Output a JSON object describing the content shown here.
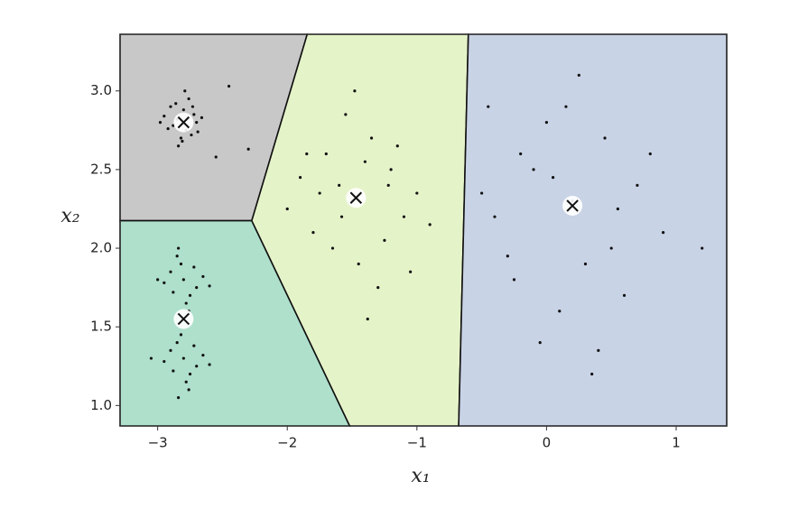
{
  "chart_data": {
    "type": "voronoi-scatter",
    "xlabel": "x₁",
    "ylabel": "x₂",
    "xlim": [
      -3.29,
      1.39
    ],
    "ylim": [
      0.87,
      3.36
    ],
    "xticks": [
      {
        "value": -3,
        "label": "−3"
      },
      {
        "value": -2,
        "label": "−2"
      },
      {
        "value": -1,
        "label": "−1"
      },
      0,
      1
    ],
    "yticks": [
      {
        "value": 1,
        "label": "1.0"
      },
      1.5,
      {
        "value": 2,
        "label": "2.0"
      },
      2.5,
      {
        "value": 3,
        "label": "3.0"
      }
    ],
    "point_color": "#111111",
    "centroids": {
      "x": [
        -2.8,
        -2.8,
        -1.47,
        0.2
      ],
      "y": [
        2.8,
        1.55,
        2.32,
        2.27
      ]
    },
    "region_colors": [
      "#c8c8c8",
      "#aee0cc",
      "#e5f3c9",
      "#c9d3e6"
    ],
    "clusters": [
      {
        "x": [
          -2.85,
          -2.78,
          -2.9,
          -2.72,
          -2.82,
          -2.76,
          -2.88,
          -2.7,
          -2.95,
          -2.8,
          -2.84,
          -2.74,
          -2.66,
          -2.92,
          -2.79,
          -2.86,
          -2.81,
          -2.73,
          -2.69,
          -2.98,
          -2.45,
          -2.3,
          -2.55
        ],
        "y": [
          2.82,
          2.75,
          2.9,
          2.85,
          2.7,
          2.95,
          2.78,
          2.8,
          2.84,
          2.88,
          2.65,
          2.72,
          2.83,
          2.76,
          3.0,
          2.92,
          2.68,
          2.9,
          2.74,
          2.8,
          3.03,
          2.63,
          2.58
        ]
      },
      {
        "x": [
          -2.8,
          -2.9,
          -2.7,
          -2.85,
          -2.75,
          -2.95,
          -2.65,
          -2.82,
          -2.78,
          -2.88,
          -2.72,
          -3.0,
          -2.6,
          -2.84,
          -2.76
        ],
        "y": [
          1.8,
          1.85,
          1.75,
          1.95,
          1.7,
          1.78,
          1.82,
          1.9,
          1.65,
          1.72,
          1.88,
          1.8,
          1.76,
          2.0,
          1.6
        ]
      },
      {
        "x": [
          -2.8,
          -2.9,
          -2.7,
          -2.85,
          -2.75,
          -2.95,
          -2.65,
          -2.82,
          -2.78,
          -2.88,
          -2.72,
          -3.05,
          -2.6,
          -2.84,
          -2.76
        ],
        "y": [
          1.3,
          1.35,
          1.25,
          1.4,
          1.2,
          1.28,
          1.32,
          1.45,
          1.15,
          1.22,
          1.38,
          1.3,
          1.26,
          1.05,
          1.1
        ]
      },
      {
        "x": [
          -1.5,
          -1.2,
          -1.8,
          -1.35,
          -1.6,
          -1.1,
          -1.9,
          -1.45,
          -1.7,
          -1.25,
          -1.0,
          -2.0,
          -1.55,
          -1.3,
          -1.4,
          -1.65,
          -1.15,
          -0.9,
          -1.75,
          -1.48,
          -1.05,
          -1.85,
          -1.38,
          -1.58,
          -1.22
        ],
        "y": [
          2.3,
          2.5,
          2.1,
          2.7,
          2.4,
          2.2,
          2.45,
          1.9,
          2.6,
          2.05,
          2.35,
          2.25,
          2.85,
          1.75,
          2.55,
          2.0,
          2.65,
          2.15,
          2.35,
          3.0,
          1.85,
          2.6,
          1.55,
          2.2,
          2.4
        ]
      },
      {
        "x": [
          0.2,
          -0.2,
          0.5,
          0.0,
          0.3,
          -0.4,
          0.7,
          0.1,
          -0.1,
          0.45,
          0.9,
          -0.5,
          0.25,
          0.6,
          -0.3,
          0.15,
          0.8,
          -0.05,
          0.35,
          1.2,
          0.05,
          -0.25,
          0.55,
          0.4,
          -0.45
        ],
        "y": [
          2.3,
          2.6,
          2.0,
          2.8,
          1.9,
          2.2,
          2.4,
          1.6,
          2.5,
          2.7,
          2.1,
          2.35,
          3.1,
          1.7,
          1.95,
          2.9,
          2.6,
          1.4,
          1.2,
          2.0,
          2.45,
          1.8,
          2.25,
          1.35,
          2.9
        ]
      }
    ]
  }
}
